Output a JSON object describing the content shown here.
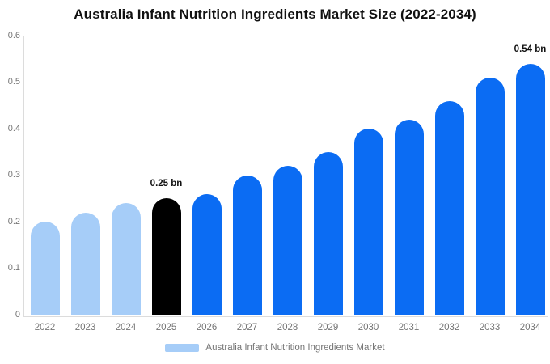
{
  "title": "Australia Infant Nutrition Ingredients Market Size (2022-2034)",
  "chart_data": {
    "type": "bar",
    "title": "Australia Infant Nutrition Ingredients Market Size (2022-2034)",
    "categories": [
      "2022",
      "2023",
      "2024",
      "2025",
      "2026",
      "2027",
      "2028",
      "2029",
      "2030",
      "2031",
      "2032",
      "2033",
      "2034"
    ],
    "values": [
      0.2,
      0.22,
      0.24,
      0.25,
      0.26,
      0.3,
      0.32,
      0.35,
      0.4,
      0.42,
      0.46,
      0.51,
      0.54
    ],
    "unit": "bn",
    "ylim": [
      0,
      0.6
    ],
    "ytick_labels": [
      "0",
      "0.1",
      "0.2",
      "0.3",
      "0.4",
      "0.5",
      "0.6"
    ],
    "grid": "off",
    "legend_position": "bottom",
    "bar_styles": [
      "past",
      "past",
      "past",
      "highlight",
      "forecast",
      "forecast",
      "forecast",
      "forecast",
      "forecast",
      "forecast",
      "forecast",
      "forecast",
      "forecast"
    ],
    "colors": {
      "past": "#a6cdf8",
      "highlight": "#000000",
      "forecast": "#0b6cf3"
    },
    "annotations": [
      {
        "index": 3,
        "text": "0.25 bn"
      },
      {
        "index": 12,
        "text": "0.54 bn"
      }
    ],
    "legend": [
      {
        "label": "Australia Infant Nutrition Ingredients Market",
        "swatch_color": "#a6cdf8"
      }
    ]
  }
}
